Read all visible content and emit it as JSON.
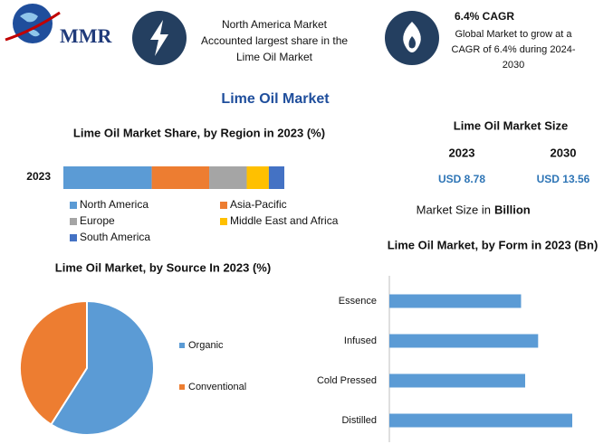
{
  "header": {
    "logo_text": "MMR",
    "region_lines": [
      "North America Market",
      "Accounted largest share in the",
      "Lime Oil Market"
    ],
    "cagr_title": "6.4% CAGR",
    "cagr_lines": [
      "Global Market to grow at a",
      "CAGR of 6.4% during 2024-",
      "2030"
    ]
  },
  "title": "Lime Oil Market",
  "market_size": {
    "title": "Lime Oil Market Size",
    "years": [
      "2023",
      "2030"
    ],
    "values": [
      "USD 8.78",
      "USD 13.56"
    ],
    "note": "Market Size in",
    "note_unit": "Billion"
  },
  "chart_data": [
    {
      "type": "stacked-hbar",
      "title": "Lime Oil Market Share, by Region in 2023 (%)",
      "categories": [
        "2023"
      ],
      "series": [
        {
          "name": "North America",
          "color": "#5b9bd5",
          "values": [
            40
          ]
        },
        {
          "name": "Asia-Pacific",
          "color": "#ed7d31",
          "values": [
            26
          ]
        },
        {
          "name": "Europe",
          "color": "#a5a5a5",
          "values": [
            17
          ]
        },
        {
          "name": "Middle East and Africa",
          "color": "#ffc000",
          "values": [
            10
          ]
        },
        {
          "name": "South America",
          "color": "#4472c4",
          "values": [
            7
          ]
        }
      ]
    },
    {
      "type": "pie",
      "title": "Lime Oil Market, by Source In 2023 (%)",
      "categories": [
        "Organic",
        "Conventional"
      ],
      "values": [
        59,
        41
      ],
      "colors": [
        "#5b9bd5",
        "#ed7d31"
      ]
    },
    {
      "type": "hbar",
      "title": "Lime Oil Market, by Form in 2023 (Bn)",
      "categories": [
        "Essence",
        "Infused",
        "Cold Pressed",
        "Distilled"
      ],
      "values": [
        1.93,
        2.18,
        1.99,
        2.68
      ],
      "color": "#5b9bd5"
    }
  ]
}
